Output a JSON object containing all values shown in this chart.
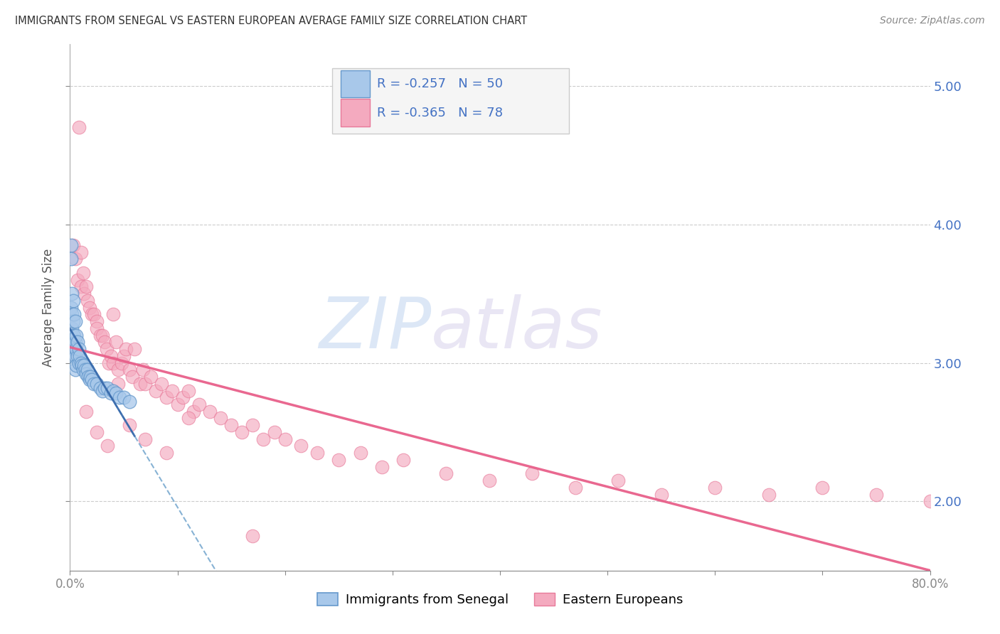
{
  "title": "IMMIGRANTS FROM SENEGAL VS EASTERN EUROPEAN AVERAGE FAMILY SIZE CORRELATION CHART",
  "source": "Source: ZipAtlas.com",
  "ylabel": "Average Family Size",
  "watermark": "ZIPatlas",
  "legend_1_label": "R = -0.257   N = 50",
  "legend_2_label": "R = -0.365   N = 78",
  "legend_bottom_1": "Immigrants from Senegal",
  "legend_bottom_2": "Eastern Europeans",
  "ylim": [
    1.5,
    5.3
  ],
  "xlim": [
    0.0,
    0.8
  ],
  "yticks_right": [
    2.0,
    3.0,
    4.0,
    5.0
  ],
  "color_senegal": "#a8c8ea",
  "color_eastern": "#f4aabf",
  "color_senegal_edge": "#6699cc",
  "color_eastern_edge": "#e87a9a",
  "color_senegal_line": "#7aaad0",
  "color_eastern_line": "#e8608a",
  "color_text_blue": "#4472C4",
  "senegal_x": [
    0.001,
    0.001,
    0.001,
    0.001,
    0.002,
    0.002,
    0.002,
    0.002,
    0.003,
    0.003,
    0.003,
    0.003,
    0.004,
    0.004,
    0.004,
    0.005,
    0.005,
    0.005,
    0.005,
    0.006,
    0.006,
    0.006,
    0.007,
    0.007,
    0.008,
    0.008,
    0.009,
    0.01,
    0.011,
    0.012,
    0.013,
    0.014,
    0.015,
    0.016,
    0.017,
    0.018,
    0.019,
    0.02,
    0.022,
    0.025,
    0.028,
    0.03,
    0.032,
    0.035,
    0.038,
    0.04,
    0.043,
    0.046,
    0.05,
    0.055
  ],
  "senegal_y": [
    3.85,
    3.75,
    3.4,
    3.2,
    3.5,
    3.35,
    3.25,
    3.1,
    3.45,
    3.3,
    3.2,
    3.05,
    3.35,
    3.2,
    3.1,
    3.3,
    3.15,
    3.05,
    2.95,
    3.2,
    3.1,
    2.98,
    3.15,
    3.05,
    3.1,
    3.0,
    3.05,
    3.0,
    2.98,
    2.95,
    2.98,
    2.95,
    2.92,
    2.95,
    2.9,
    2.88,
    2.9,
    2.88,
    2.85,
    2.85,
    2.82,
    2.8,
    2.82,
    2.82,
    2.78,
    2.8,
    2.78,
    2.75,
    2.75,
    2.72
  ],
  "eastern_x": [
    0.003,
    0.005,
    0.007,
    0.008,
    0.01,
    0.01,
    0.012,
    0.013,
    0.015,
    0.016,
    0.018,
    0.02,
    0.022,
    0.025,
    0.025,
    0.028,
    0.03,
    0.032,
    0.034,
    0.036,
    0.038,
    0.04,
    0.04,
    0.043,
    0.045,
    0.048,
    0.05,
    0.052,
    0.055,
    0.058,
    0.06,
    0.065,
    0.068,
    0.07,
    0.075,
    0.08,
    0.085,
    0.09,
    0.095,
    0.1,
    0.105,
    0.11,
    0.115,
    0.12,
    0.13,
    0.14,
    0.15,
    0.16,
    0.17,
    0.18,
    0.19,
    0.2,
    0.215,
    0.23,
    0.25,
    0.27,
    0.29,
    0.31,
    0.35,
    0.39,
    0.43,
    0.47,
    0.51,
    0.55,
    0.6,
    0.65,
    0.7,
    0.75,
    0.8,
    0.015,
    0.025,
    0.035,
    0.045,
    0.055,
    0.07,
    0.09,
    0.11,
    0.17
  ],
  "eastern_y": [
    3.85,
    3.75,
    3.6,
    4.7,
    3.8,
    3.55,
    3.65,
    3.5,
    3.55,
    3.45,
    3.4,
    3.35,
    3.35,
    3.3,
    3.25,
    3.2,
    3.2,
    3.15,
    3.1,
    3.0,
    3.05,
    3.35,
    3.0,
    3.15,
    2.95,
    3.0,
    3.05,
    3.1,
    2.95,
    2.9,
    3.1,
    2.85,
    2.95,
    2.85,
    2.9,
    2.8,
    2.85,
    2.75,
    2.8,
    2.7,
    2.75,
    2.8,
    2.65,
    2.7,
    2.65,
    2.6,
    2.55,
    2.5,
    2.55,
    2.45,
    2.5,
    2.45,
    2.4,
    2.35,
    2.3,
    2.35,
    2.25,
    2.3,
    2.2,
    2.15,
    2.2,
    2.1,
    2.15,
    2.05,
    2.1,
    2.05,
    2.1,
    2.05,
    2.0,
    2.65,
    2.5,
    2.4,
    2.85,
    2.55,
    2.45,
    2.35,
    2.6,
    1.75
  ]
}
